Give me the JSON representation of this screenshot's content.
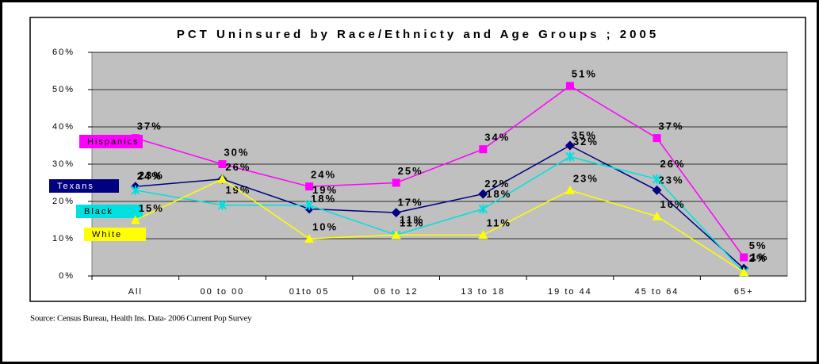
{
  "chart_data": {
    "type": "line",
    "title": "PCT Uninsured by Race/Ethnicty and Age Groups ; 2005",
    "categories": [
      "All",
      "00 to 00",
      "01to 05",
      "06 to 12",
      "13 to 18",
      "19 to 44",
      "45 to 64",
      "65+"
    ],
    "ylim": [
      0,
      60
    ],
    "yticks": [
      {
        "value": 0,
        "label": "0%"
      },
      {
        "value": 10,
        "label": "10%"
      },
      {
        "value": 20,
        "label": "20%"
      },
      {
        "value": 30,
        "label": "30%"
      },
      {
        "value": 40,
        "label": "40%"
      },
      {
        "value": 50,
        "label": "50%"
      },
      {
        "value": 60,
        "label": "60%"
      }
    ],
    "grid": true,
    "series": [
      {
        "name": "Hispanics",
        "color": "#ff00ff",
        "marker": "square",
        "values": [
          37,
          30,
          24,
          25,
          34,
          51,
          37,
          5
        ],
        "value_labels": [
          "37%",
          "30%",
          "24%",
          "25%",
          "34%",
          "51%",
          "37%",
          "5%"
        ]
      },
      {
        "name": "Texans",
        "color": "#000080",
        "marker": "diamond",
        "values": [
          24,
          26,
          18,
          17,
          22,
          35,
          23,
          2
        ],
        "value_labels": [
          "24%",
          null,
          "18%",
          "17%",
          "22%",
          "35%",
          "23%",
          "2%"
        ]
      },
      {
        "name": "Black",
        "color": "#00e0e0",
        "marker": "asterisk",
        "values": [
          23,
          19,
          19,
          11,
          18,
          32,
          26,
          1
        ],
        "value_labels": [
          "23%",
          "19%",
          "19%",
          "11%",
          "18%",
          "32%",
          "26%",
          "1%"
        ]
      },
      {
        "name": "White",
        "color": "#ffff00",
        "marker": "triangle",
        "values": [
          15,
          26,
          10,
          11,
          11,
          23,
          16,
          1
        ],
        "value_labels": [
          "15%",
          "26%",
          "10%",
          "11%",
          "11%",
          "23%",
          "16%",
          null
        ]
      }
    ]
  },
  "source": "Source: Census Bureau, Health Ins. Data- 2006 Current Pop Survey"
}
